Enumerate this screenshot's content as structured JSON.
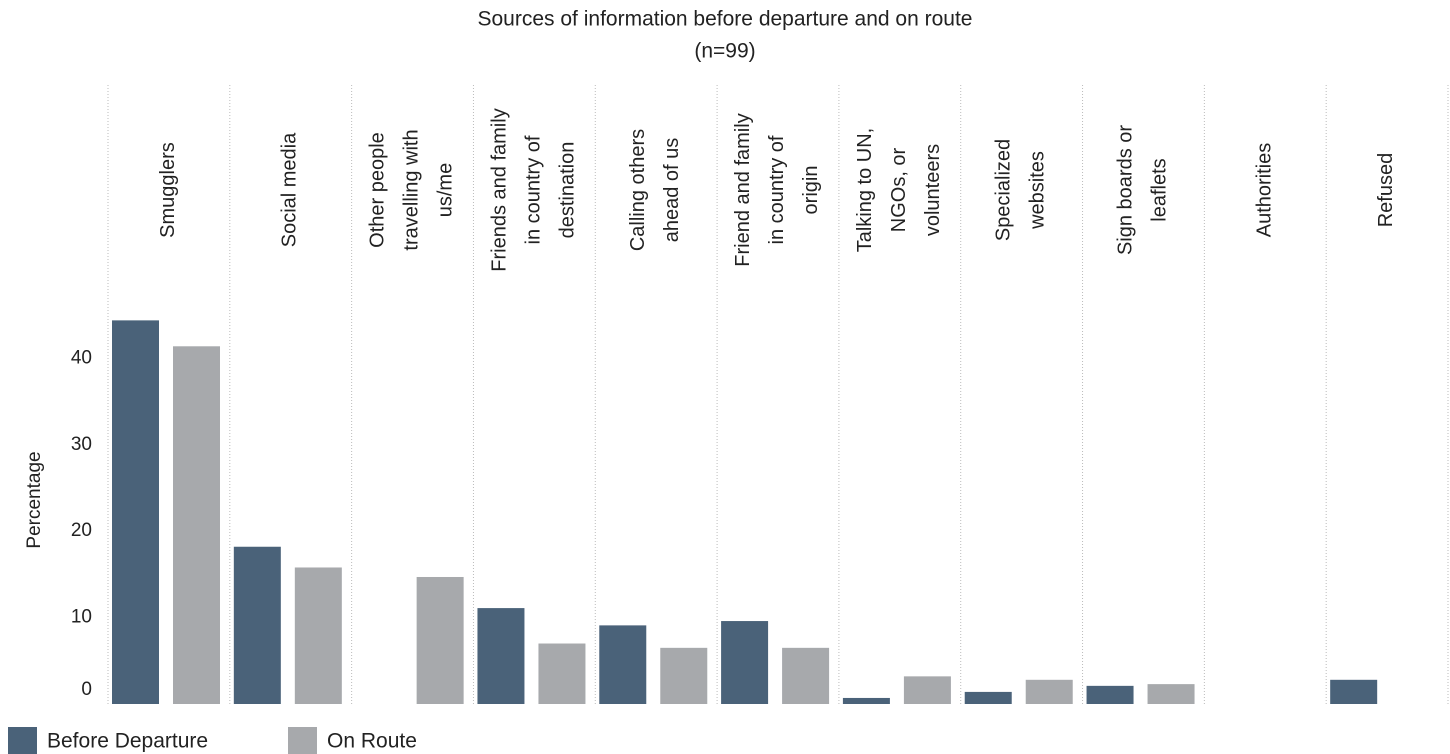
{
  "chart_data": {
    "type": "bar",
    "title": "Sources of information before departure and on route",
    "subtitle": "(n=99)",
    "y_label": "Percentage",
    "categories": [
      "Smugglers",
      "Social media",
      "Other people\ntravelling with\nus/me",
      "Friends and family\nin country of\ndestination",
      "Calling others\nahead of us",
      "Friend and family\nin country of\norigin",
      "Talking to UN,\nNGOs, or\nvolunteers",
      "Specialized\nwebsites",
      "Sign boards or\nleaflets",
      "Authorities",
      "Refused"
    ],
    "series": [
      {
        "name": "Before Departure",
        "color": "#4a6279",
        "values": [
          44.4,
          18.2,
          0,
          11.1,
          9.1,
          9.6,
          0.7,
          1.4,
          2.1,
          0,
          2.8
        ]
      },
      {
        "name": "On Route",
        "color": "#a7a9ac",
        "values": [
          41.4,
          15.8,
          14.7,
          7.0,
          6.5,
          6.5,
          3.2,
          2.8,
          2.3,
          0,
          0
        ]
      }
    ],
    "ylim": [
      0,
      45.6
    ],
    "yticks": [
      0,
      10,
      20,
      30,
      40
    ],
    "grid": false,
    "legend": "bottom-left"
  }
}
